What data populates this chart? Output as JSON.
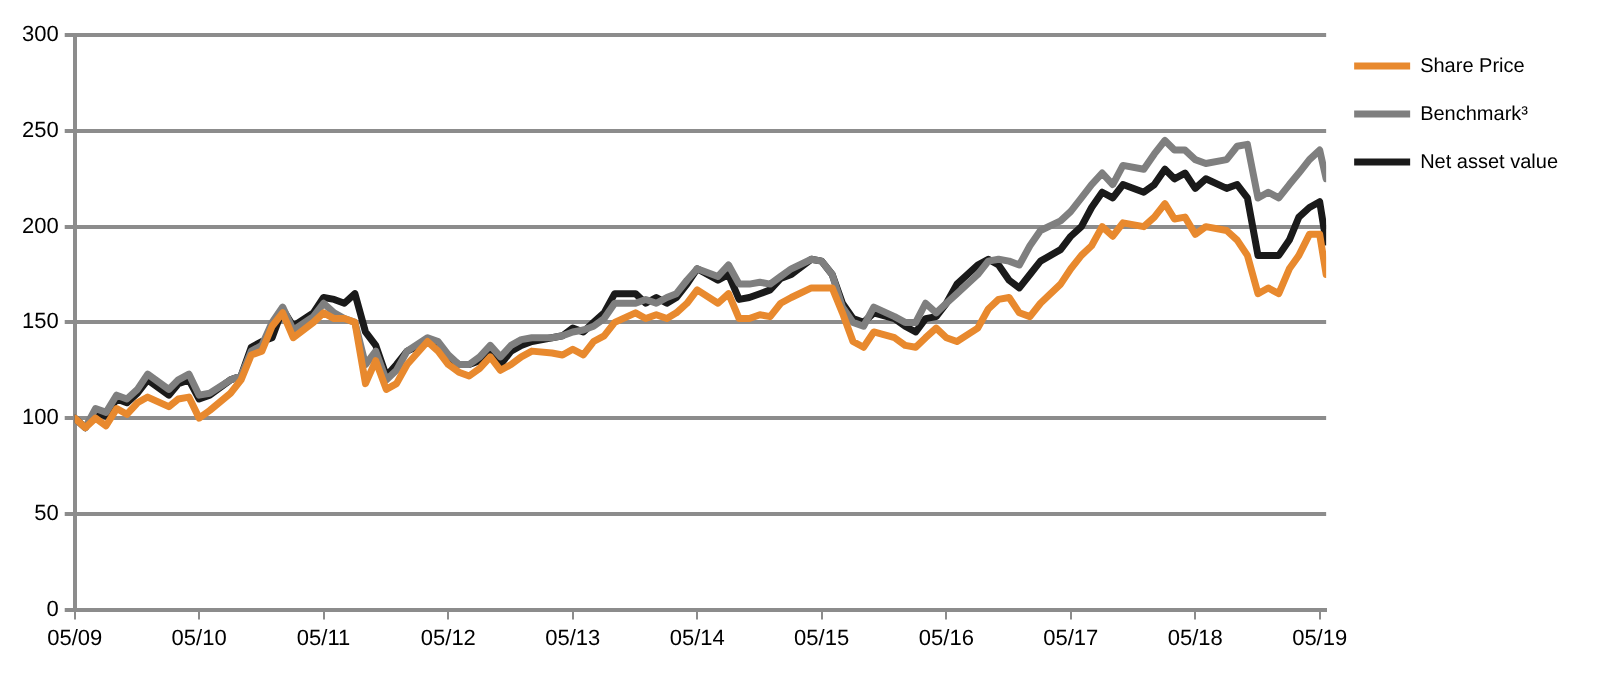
{
  "chart_data": {
    "type": "line",
    "x": [
      "2009-05",
      "2009-06",
      "2009-07",
      "2009-08",
      "2009-09",
      "2009-10",
      "2009-11",
      "2009-12",
      "2010-02",
      "2010-03",
      "2010-04",
      "2010-05",
      "2010-06",
      "2010-08",
      "2010-09",
      "2010-10",
      "2010-11",
      "2010-12",
      "2011-01",
      "2011-02",
      "2011-04",
      "2011-05",
      "2011-06",
      "2011-07",
      "2011-08",
      "2011-09",
      "2011-10",
      "2011-11",
      "2011-12",
      "2012-01",
      "2012-03",
      "2012-04",
      "2012-05",
      "2012-06",
      "2012-07",
      "2012-08",
      "2012-09",
      "2012-10",
      "2012-11",
      "2012-12",
      "2013-01",
      "2013-03",
      "2013-04",
      "2013-05",
      "2013-06",
      "2013-07",
      "2013-08",
      "2013-09",
      "2013-11",
      "2013-12",
      "2014-01",
      "2014-02",
      "2014-03",
      "2014-04",
      "2014-05",
      "2014-07",
      "2014-08",
      "2014-09",
      "2014-10",
      "2014-11",
      "2014-12",
      "2015-01",
      "2015-02",
      "2015-04",
      "2015-05",
      "2015-06",
      "2015-07",
      "2015-08",
      "2015-09",
      "2015-10",
      "2015-12",
      "2016-01",
      "2016-02",
      "2016-03",
      "2016-04",
      "2016-05",
      "2016-06",
      "2016-08",
      "2016-09",
      "2016-10",
      "2016-11",
      "2016-12",
      "2017-01",
      "2017-02",
      "2017-04",
      "2017-05",
      "2017-06",
      "2017-07",
      "2017-08",
      "2017-09",
      "2017-10",
      "2017-12",
      "2018-01",
      "2018-02",
      "2018-03",
      "2018-04",
      "2018-05",
      "2018-06",
      "2018-08",
      "2018-09",
      "2018-10",
      "2018-11",
      "2018-12",
      "2019-01",
      "2019-02",
      "2019-03",
      "2019-04",
      "2019-05",
      "2019-05-20"
    ],
    "series": [
      {
        "name": "Share Price",
        "color": "#e8892e",
        "values": [
          100,
          95,
          100,
          96,
          105,
          102,
          108,
          111,
          106,
          110,
          111,
          100,
          104,
          113,
          120,
          133,
          135,
          148,
          155,
          142,
          150,
          155,
          152,
          152,
          150,
          118,
          130,
          115,
          118,
          128,
          140,
          135,
          128,
          124,
          122,
          126,
          132,
          125,
          128,
          132,
          135,
          134,
          133,
          136,
          133,
          140,
          143,
          150,
          155,
          152,
          154,
          152,
          155,
          160,
          167,
          160,
          165,
          152,
          152,
          154,
          153,
          160,
          163,
          168,
          168,
          168,
          155,
          140,
          137,
          145,
          142,
          138,
          137,
          142,
          147,
          142,
          140,
          147,
          157,
          162,
          163,
          155,
          153,
          160,
          170,
          178,
          185,
          190,
          200,
          195,
          202,
          200,
          205,
          212,
          204,
          205,
          196,
          200,
          198,
          193,
          185,
          165,
          168,
          165,
          178,
          185,
          196,
          196,
          175
        ]
      },
      {
        "name": "Benchmark³",
        "color": "#7f7f7f",
        "values": [
          100,
          95,
          105,
          103,
          112,
          110,
          115,
          123,
          115,
          120,
          123,
          112,
          113,
          120,
          122,
          135,
          138,
          150,
          158,
          146,
          153,
          160,
          155,
          152,
          150,
          128,
          135,
          120,
          125,
          135,
          142,
          140,
          133,
          128,
          128,
          132,
          138,
          132,
          138,
          141,
          142,
          142,
          143,
          145,
          146,
          148,
          152,
          160,
          160,
          162,
          160,
          163,
          165,
          172,
          178,
          174,
          180,
          170,
          170,
          171,
          170,
          174,
          178,
          183,
          182,
          175,
          158,
          150,
          148,
          158,
          153,
          150,
          150,
          160,
          155,
          160,
          165,
          175,
          182,
          183,
          182,
          180,
          190,
          198,
          203,
          208,
          215,
          222,
          228,
          222,
          232,
          230,
          238,
          245,
          240,
          240,
          235,
          233,
          235,
          242,
          243,
          215,
          218,
          215,
          222,
          228,
          235,
          240,
          225
        ]
      },
      {
        "name": "Net asset value",
        "color": "#1a1a1a",
        "values": [
          100,
          95,
          103,
          101,
          110,
          108,
          113,
          120,
          112,
          118,
          120,
          110,
          112,
          120,
          122,
          137,
          140,
          142,
          157,
          148,
          155,
          163,
          162,
          160,
          165,
          145,
          138,
          122,
          128,
          135,
          140,
          138,
          132,
          128,
          128,
          130,
          135,
          128,
          135,
          138,
          140,
          142,
          143,
          147,
          145,
          150,
          155,
          165,
          165,
          160,
          163,
          160,
          163,
          170,
          178,
          172,
          175,
          162,
          163,
          165,
          167,
          173,
          175,
          183,
          182,
          175,
          160,
          152,
          150,
          155,
          152,
          148,
          145,
          152,
          153,
          160,
          170,
          180,
          183,
          180,
          172,
          168,
          175,
          182,
          188,
          195,
          200,
          210,
          218,
          215,
          222,
          218,
          222,
          230,
          225,
          228,
          220,
          225,
          220,
          222,
          215,
          185,
          185,
          185,
          193,
          205,
          210,
          213,
          192
        ]
      }
    ],
    "xlim": [
      "2009-05",
      "2019-05-20"
    ],
    "xticks": [
      {
        "value": "2009-05",
        "label": "05/09"
      },
      {
        "value": "2010-05",
        "label": "05/10"
      },
      {
        "value": "2011-05",
        "label": "05/11"
      },
      {
        "value": "2012-05",
        "label": "05/12"
      },
      {
        "value": "2013-05",
        "label": "05/13"
      },
      {
        "value": "2014-05",
        "label": "05/14"
      },
      {
        "value": "2015-05",
        "label": "05/15"
      },
      {
        "value": "2016-05",
        "label": "05/16"
      },
      {
        "value": "2017-05",
        "label": "05/17"
      },
      {
        "value": "2018-05",
        "label": "05/18"
      },
      {
        "value": "2019-05",
        "label": "05/19"
      }
    ],
    "ylim": [
      0,
      300
    ],
    "yticks": [
      0,
      50,
      100,
      150,
      200,
      250,
      300
    ],
    "grid": "y",
    "legend": "top right",
    "marker": "none",
    "line_style": "solid"
  }
}
